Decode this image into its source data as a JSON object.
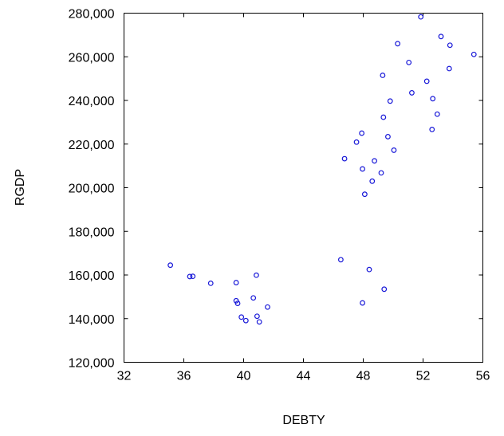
{
  "colors": {
    "points": "#1818d8",
    "axis": "#000000",
    "background": "#ffffff"
  },
  "chart_data": {
    "type": "scatter",
    "title": "",
    "xlabel": "DEBTY",
    "ylabel": "RGDP",
    "xlim": [
      32,
      56
    ],
    "ylim": [
      120000,
      280000
    ],
    "xticks": [
      32,
      36,
      40,
      44,
      48,
      52,
      56
    ],
    "yticks": [
      120000,
      140000,
      160000,
      180000,
      200000,
      220000,
      240000,
      260000,
      280000
    ],
    "xtick_labels": [
      "32",
      "36",
      "40",
      "44",
      "48",
      "52",
      "56"
    ],
    "ytick_labels": [
      "120,000",
      "140,000",
      "160,000",
      "180,000",
      "200,000",
      "220,000",
      "240,000",
      "260,000",
      "280,000"
    ],
    "grid": false,
    "marker": "hollow-circle",
    "points": [
      [
        35.1,
        164500
      ],
      [
        36.4,
        159300
      ],
      [
        36.6,
        159400
      ],
      [
        37.8,
        156200
      ],
      [
        39.5,
        156500
      ],
      [
        39.5,
        148200
      ],
      [
        39.6,
        147000
      ],
      [
        39.85,
        140700
      ],
      [
        40.15,
        139100
      ],
      [
        40.65,
        149500
      ],
      [
        40.85,
        159900
      ],
      [
        40.9,
        141100
      ],
      [
        41.05,
        138500
      ],
      [
        41.6,
        145300
      ],
      [
        46.5,
        167000
      ],
      [
        46.75,
        213300
      ],
      [
        47.55,
        220900
      ],
      [
        47.9,
        225000
      ],
      [
        47.95,
        208600
      ],
      [
        47.95,
        147200
      ],
      [
        48.1,
        197000
      ],
      [
        48.4,
        162500
      ],
      [
        48.6,
        203000
      ],
      [
        48.75,
        212300
      ],
      [
        49.2,
        206800
      ],
      [
        49.3,
        251500
      ],
      [
        49.35,
        232300
      ],
      [
        49.4,
        153500
      ],
      [
        49.65,
        223400
      ],
      [
        49.8,
        239700
      ],
      [
        50.05,
        217200
      ],
      [
        50.3,
        266000
      ],
      [
        51.05,
        257400
      ],
      [
        51.25,
        243500
      ],
      [
        51.85,
        278300
      ],
      [
        52.25,
        248800
      ],
      [
        52.6,
        226700
      ],
      [
        52.65,
        240800
      ],
      [
        52.95,
        233700
      ],
      [
        53.2,
        269300
      ],
      [
        53.75,
        254600
      ],
      [
        53.8,
        265300
      ],
      [
        55.4,
        261100
      ]
    ]
  }
}
